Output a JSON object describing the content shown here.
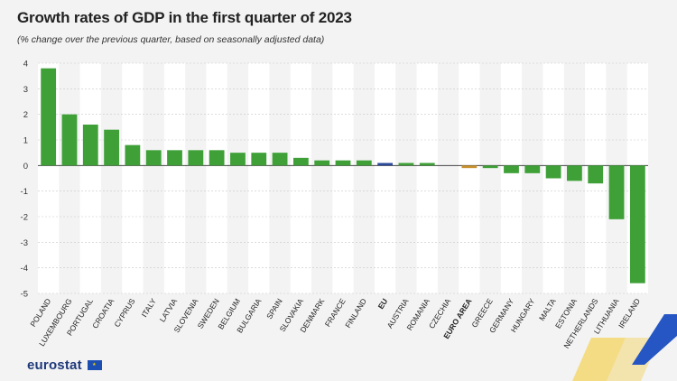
{
  "header": {
    "title": "Growth rates of GDP in the first quarter of 2023",
    "subtitle": "(% change over the previous quarter, based on seasonally adjusted data)"
  },
  "footer": {
    "logo_text": "eurostat"
  },
  "colors": {
    "default": "#3ea037",
    "eu": "#2c4a9c",
    "euro_area": "#c9922e"
  },
  "chart_data": {
    "type": "bar",
    "title": "Growth rates of GDP in the first quarter of 2023",
    "subtitle": "(% change over the previous quarter, based on seasonally adjusted data)",
    "ylim": [
      -5,
      4
    ],
    "yticks": [
      4,
      3,
      2,
      1,
      0,
      -1,
      -2,
      -3,
      -4,
      -5
    ],
    "categories": [
      "POLAND",
      "LUXEMBOURG",
      "PORTUGAL",
      "CROATIA",
      "CYPRUS",
      "ITALY",
      "LATVIA",
      "SLOVENIA",
      "SWEDEN",
      "BELGIUM",
      "BULGARIA",
      "SPAIN",
      "SLOVAKIA",
      "DENMARK",
      "FRANCE",
      "FINLAND",
      "EU",
      "AUSTRIA",
      "ROMANIA",
      "CZECHIA",
      "EURO AREA",
      "GREECE",
      "GERMANY",
      "HUNGARY",
      "MALTA",
      "ESTONIA",
      "NETHERLANDS",
      "LITHUANIA",
      "IRELAND"
    ],
    "values": [
      3.8,
      2.0,
      1.6,
      1.4,
      0.8,
      0.6,
      0.6,
      0.6,
      0.6,
      0.5,
      0.5,
      0.5,
      0.3,
      0.2,
      0.2,
      0.2,
      0.1,
      0.1,
      0.1,
      0.0,
      -0.1,
      -0.1,
      -0.3,
      -0.3,
      -0.5,
      -0.6,
      -0.7,
      -2.1,
      -4.6
    ],
    "highlight": {
      "EU": "eu",
      "EURO AREA": "euro_area"
    },
    "bold_labels": [
      "EU",
      "EURO AREA"
    ],
    "grid": true
  }
}
